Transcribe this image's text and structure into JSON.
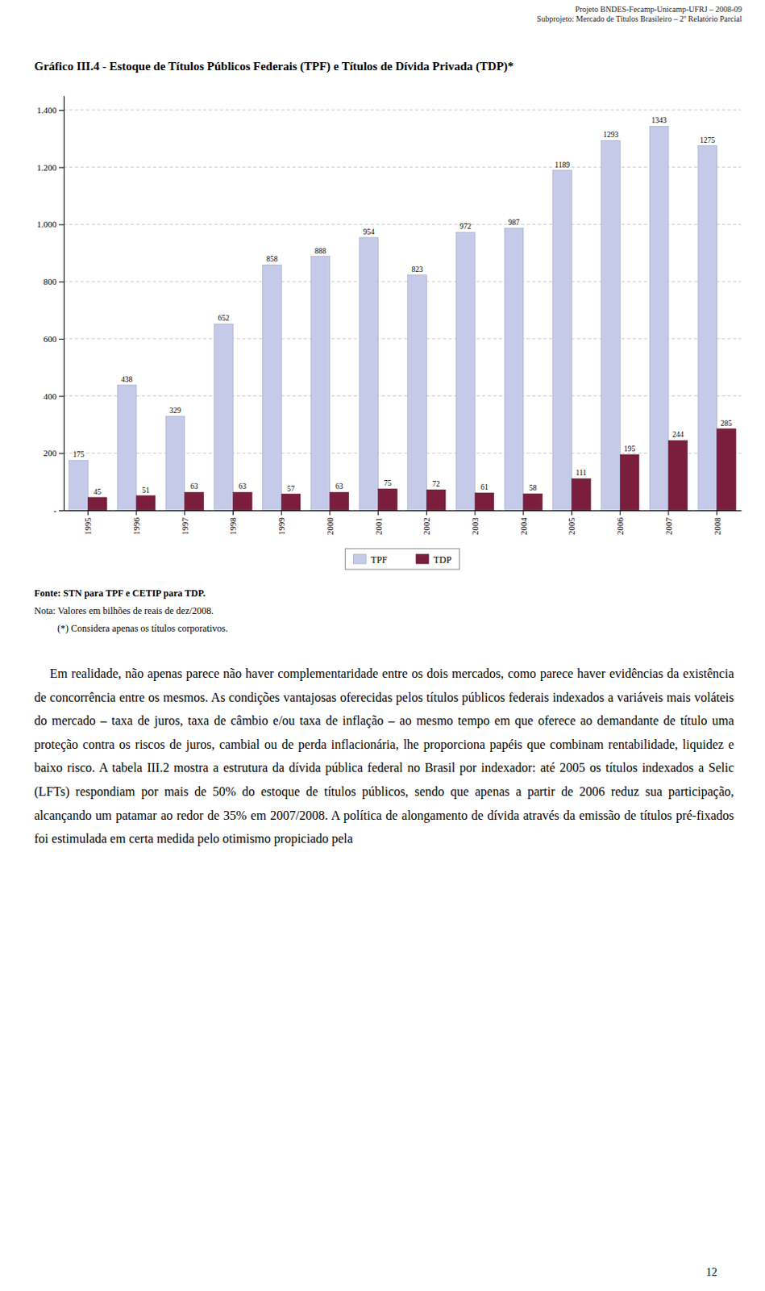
{
  "header_lines": [
    "Projeto BNDES-Fecamp-Unicamp-UFRJ – 2008-09",
    "Subprojeto: Mercado de Títulos Brasileiro – 2º Relatório Parcial"
  ],
  "chart_data": {
    "type": "bar",
    "title": "Gráfico III.4 - Estoque de Títulos Públicos Federais (TPF) e Títulos de Dívida Privada (TDP)*",
    "categories": [
      "1995",
      "1996",
      "1997",
      "1998",
      "1999",
      "2000",
      "2001",
      "2002",
      "2003",
      "2004",
      "2005",
      "2006",
      "2007",
      "2008"
    ],
    "series": [
      {
        "name": "TPF",
        "color": "#c5cae9",
        "values": [
          175,
          438,
          329,
          652,
          858,
          888,
          954,
          823,
          972,
          987,
          1189,
          1293,
          1343,
          1275
        ]
      },
      {
        "name": "TDP",
        "color": "#7b1e3e",
        "values": [
          45,
          51,
          63,
          63,
          57,
          63,
          75,
          72,
          61,
          58,
          111,
          195,
          244,
          285
        ]
      }
    ],
    "ylim": [
      0,
      1450
    ],
    "yticks": [
      {
        "value": 0,
        "label": "-"
      },
      200,
      400,
      600,
      800,
      {
        "value": 1000,
        "label": "1.000"
      },
      {
        "value": 1200,
        "label": "1.200"
      },
      {
        "value": 1400,
        "label": "1.400"
      }
    ],
    "grid": true,
    "legend": "bottom",
    "data_labels": true
  },
  "footnotes": [
    "Fonte: STN para TPF e CETIP para TDP.",
    "Nota: Valores em bilhões de reais de dez/2008.",
    "(*) Considera apenas os títulos corporativos."
  ],
  "body_text": "    Em realidade, não apenas parece não haver complementaridade entre os dois mercados, como parece haver evidências da existência de concorrência entre os mesmos. As condições vantajosas oferecidas pelos títulos públicos federais indexados a variáveis mais voláteis do mercado – taxa de juros, taxa de câmbio e/ou taxa de inflação – ao mesmo tempo em que oferece ao demandante de título uma proteção contra os riscos de juros, cambial ou de perda inflacionária, lhe proporciona papéis que combinam rentabilidade, liquidez e baixo risco. A tabela III.2 mostra a estrutura da dívida pública federal no Brasil por indexador: até 2005 os títulos indexados a Selic (LFTs) respondiam por mais de 50% do estoque de títulos públicos, sendo que apenas a partir de 2006 reduz sua participação, alcançando um patamar ao redor de 35% em 2007/2008. A política de alongamento de dívida através da emissão de títulos pré-fixados foi estimulada em certa medida pelo otimismo propiciado pela",
  "page_number": "12"
}
